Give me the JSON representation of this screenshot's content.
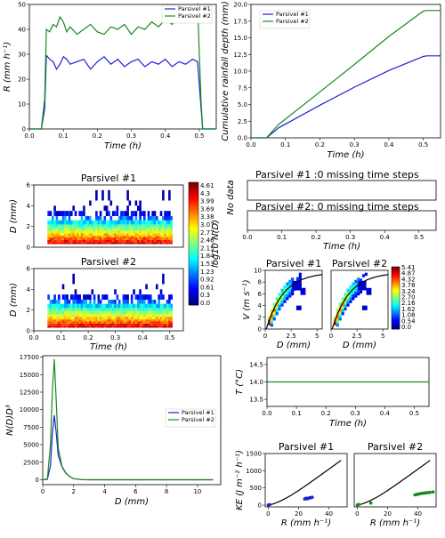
{
  "colors": {
    "p1": "#1f1fd8",
    "p2": "#1a8a1a"
  },
  "legend": [
    "Parsivel #1",
    "Parsivel #2"
  ],
  "chart_data": [
    {
      "type": "line",
      "xlabel": "Time (h)",
      "ylabel": "R (mm h⁻¹)",
      "xlim": [
        0,
        0.55
      ],
      "ylim": [
        0,
        50
      ],
      "xticks": [
        "0.0",
        "0.1",
        "0.2",
        "0.3",
        "0.4",
        "0.5"
      ],
      "yticks": [
        "0",
        "10",
        "20",
        "30",
        "40",
        "50"
      ],
      "legend_placement": "top-right",
      "series": [
        {
          "name": "Parsivel #1",
          "points": [
            [
              0,
              0
            ],
            [
              0.035,
              0
            ],
            [
              0.045,
              8
            ],
            [
              0.05,
              29.5
            ],
            [
              0.06,
              28
            ],
            [
              0.07,
              27
            ],
            [
              0.08,
              24
            ],
            [
              0.09,
              26
            ],
            [
              0.1,
              29
            ],
            [
              0.11,
              28
            ],
            [
              0.12,
              26
            ],
            [
              0.14,
              27
            ],
            [
              0.16,
              28
            ],
            [
              0.18,
              24
            ],
            [
              0.2,
              27
            ],
            [
              0.22,
              29
            ],
            [
              0.24,
              26
            ],
            [
              0.26,
              28
            ],
            [
              0.28,
              25
            ],
            [
              0.3,
              27
            ],
            [
              0.32,
              28
            ],
            [
              0.34,
              25
            ],
            [
              0.36,
              27
            ],
            [
              0.38,
              26
            ],
            [
              0.4,
              28
            ],
            [
              0.42,
              25
            ],
            [
              0.44,
              27
            ],
            [
              0.46,
              26
            ],
            [
              0.48,
              28
            ],
            [
              0.495,
              27
            ],
            [
              0.505,
              9
            ],
            [
              0.51,
              0
            ],
            [
              0.55,
              0
            ]
          ]
        },
        {
          "name": "Parsivel #2",
          "points": [
            [
              0,
              0
            ],
            [
              0.035,
              0
            ],
            [
              0.045,
              12
            ],
            [
              0.05,
              40
            ],
            [
              0.06,
              39
            ],
            [
              0.07,
              42
            ],
            [
              0.08,
              41
            ],
            [
              0.09,
              45
            ],
            [
              0.1,
              43
            ],
            [
              0.11,
              39
            ],
            [
              0.12,
              41
            ],
            [
              0.14,
              38
            ],
            [
              0.16,
              40
            ],
            [
              0.18,
              42
            ],
            [
              0.2,
              39
            ],
            [
              0.22,
              38
            ],
            [
              0.24,
              41
            ],
            [
              0.26,
              40
            ],
            [
              0.28,
              42
            ],
            [
              0.3,
              38
            ],
            [
              0.32,
              41
            ],
            [
              0.34,
              40
            ],
            [
              0.36,
              43
            ],
            [
              0.38,
              41
            ],
            [
              0.4,
              44
            ],
            [
              0.42,
              42
            ],
            [
              0.44,
              45
            ],
            [
              0.46,
              43
            ],
            [
              0.48,
              46
            ],
            [
              0.495,
              50
            ],
            [
              0.505,
              12
            ],
            [
              0.51,
              0
            ],
            [
              0.55,
              0
            ]
          ]
        }
      ]
    },
    {
      "type": "line",
      "xlabel": "Time (h)",
      "ylabel": "Cumulative rainfall depth (mm)",
      "xlim": [
        0,
        0.55
      ],
      "ylim": [
        0,
        20
      ],
      "xticks": [
        "0.0",
        "0.1",
        "0.2",
        "0.3",
        "0.4",
        "0.5"
      ],
      "yticks": [
        "0.0",
        "2.5",
        "5.0",
        "7.5",
        "10.0",
        "12.5",
        "15.0",
        "17.5",
        "20.0"
      ],
      "legend_placement": "top-left",
      "series": [
        {
          "name": "Parsivel #1",
          "points": [
            [
              0,
              0
            ],
            [
              0.045,
              0
            ],
            [
              0.08,
              1.5
            ],
            [
              0.2,
              4.9
            ],
            [
              0.3,
              7.6
            ],
            [
              0.4,
              10.1
            ],
            [
              0.5,
              12.2
            ],
            [
              0.51,
              12.3
            ],
            [
              0.55,
              12.3
            ]
          ]
        },
        {
          "name": "Parsivel #2",
          "points": [
            [
              0,
              0
            ],
            [
              0.045,
              0
            ],
            [
              0.08,
              2.0
            ],
            [
              0.2,
              6.9
            ],
            [
              0.3,
              11.0
            ],
            [
              0.4,
              15.2
            ],
            [
              0.5,
              19.0
            ],
            [
              0.51,
              19.1
            ],
            [
              0.55,
              19.1
            ]
          ]
        }
      ]
    },
    {
      "type": "heatmap",
      "titles": [
        "Parsivel #1",
        "Parsivel #2"
      ],
      "xlabel": "Time (h)",
      "ylabel": "D (mm)",
      "xlim": [
        0,
        0.55
      ],
      "ylim": [
        0,
        6
      ],
      "xticks": [
        "0.0",
        "0.1",
        "0.2",
        "0.3",
        "0.4",
        "0.5"
      ],
      "yticks": [
        "0",
        "2",
        "4",
        "6"
      ],
      "colorbar_label": "log10 N(D)",
      "colorbar_ticks": [
        "4.61",
        "4.3",
        "3.99",
        "3.69",
        "3.38",
        "3.07",
        "2.77",
        "2.46",
        "2.15",
        "1.84",
        "1.53",
        "1.23",
        "0.92",
        "0.61",
        "0.3",
        "0.0"
      ]
    },
    {
      "type": "table",
      "ylabel": "No data",
      "xlabel": "Time (h)",
      "xlim": [
        0,
        0.55
      ],
      "xticks": [
        "0.0",
        "0.1",
        "0.2",
        "0.3",
        "0.4",
        "0.5"
      ],
      "rows": [
        "Parsivel #1 :0 missing time steps",
        "Parsivel #2: 0 missing time steps"
      ]
    },
    {
      "type": "heatmap",
      "titles": [
        "Parsivel #1",
        "Parsivel #2"
      ],
      "xlabel": "D (mm)",
      "ylabel": "V (m s⁻¹)",
      "xlim": [
        0,
        5.5
      ],
      "ylim": [
        0,
        10
      ],
      "xticks": [
        "0",
        "2.5",
        "5"
      ],
      "yticks": [
        "0",
        "2",
        "4",
        "6",
        "8",
        "10"
      ],
      "colorbar_ticks": [
        "5.41",
        "4.87",
        "4.32",
        "3.78",
        "3.24",
        "2.70",
        "2.16",
        "1.62",
        "1.08",
        "0.54",
        "0.0"
      ]
    },
    {
      "type": "line",
      "xlabel": "D (mm)",
      "ylabel": "N(D)D³",
      "xlim": [
        0,
        11.5
      ],
      "ylim": [
        0,
        17500
      ],
      "xticks": [
        "0",
        "2",
        "4",
        "6",
        "8",
        "10"
      ],
      "yticks": [
        "0",
        "2500",
        "5000",
        "7500",
        "10000",
        "12500",
        "15000",
        "17500"
      ],
      "legend_placement": "top-right",
      "series": [
        {
          "name": "Parsivel #1",
          "points": [
            [
              0,
              0
            ],
            [
              0.3,
              50
            ],
            [
              0.5,
              2000
            ],
            [
              0.62,
              6500
            ],
            [
              0.75,
              9200
            ],
            [
              0.87,
              6800
            ],
            [
              1.0,
              3500
            ],
            [
              1.25,
              1800
            ],
            [
              1.5,
              900
            ],
            [
              1.75,
              450
            ],
            [
              2.0,
              150
            ],
            [
              2.5,
              20
            ],
            [
              3,
              0
            ],
            [
              11,
              0
            ]
          ]
        },
        {
          "name": "Parsivel #2",
          "points": [
            [
              0,
              0
            ],
            [
              0.3,
              100
            ],
            [
              0.5,
              5000
            ],
            [
              0.62,
              12500
            ],
            [
              0.75,
              17200
            ],
            [
              0.87,
              11500
            ],
            [
              1.0,
              4500
            ],
            [
              1.25,
              1900
            ],
            [
              1.5,
              950
            ],
            [
              1.75,
              450
            ],
            [
              2.0,
              150
            ],
            [
              2.5,
              20
            ],
            [
              3,
              0
            ],
            [
              11,
              0
            ]
          ]
        }
      ]
    },
    {
      "type": "line",
      "xlabel": "Time (h)",
      "ylabel": "T (°C)",
      "xlim": [
        0,
        0.55
      ],
      "ylim": [
        13.3,
        14.7
      ],
      "xticks": [
        "0.0",
        "0.1",
        "0.2",
        "0.3",
        "0.4",
        "0.5"
      ],
      "yticks": [
        "13.5",
        "14.0",
        "14.5"
      ],
      "series": [
        {
          "name": "Parsivel #2",
          "points": [
            [
              0,
              14.0
            ],
            [
              0.55,
              14.0
            ]
          ]
        }
      ]
    },
    {
      "type": "scatter",
      "titles": [
        "Parsivel #1",
        "Parsivel #2"
      ],
      "xlabel": "R (mm h⁻¹)",
      "ylabel": "KE (J m⁻² h⁻¹)",
      "xlim": [
        -2,
        52
      ],
      "ylim": [
        -50,
        1500
      ],
      "xticks": [
        "0",
        "20",
        "40"
      ],
      "yticks": [
        "0",
        "500",
        "1000",
        "1500"
      ],
      "series": [
        {
          "name": "Parsivel #1",
          "points": [
            [
              0,
              5
            ],
            [
              1,
              15
            ],
            [
              24,
              180
            ],
            [
              25,
              200
            ],
            [
              26,
              190
            ],
            [
              27,
              210
            ],
            [
              28,
              220
            ],
            [
              29,
              230
            ],
            [
              27,
              205
            ],
            [
              26,
              195
            ],
            [
              25,
              185
            ],
            [
              28,
              215
            ]
          ]
        },
        {
          "name": "Parsivel #2",
          "points": [
            [
              0,
              5
            ],
            [
              1,
              20
            ],
            [
              9,
              60
            ],
            [
              38,
              300
            ],
            [
              39,
              310
            ],
            [
              40,
              320
            ],
            [
              41,
              330
            ],
            [
              42,
              335
            ],
            [
              43,
              345
            ],
            [
              44,
              350
            ],
            [
              45,
              355
            ],
            [
              46,
              360
            ],
            [
              47,
              365
            ],
            [
              48,
              370
            ],
            [
              50,
              385
            ]
          ]
        }
      ]
    }
  ]
}
